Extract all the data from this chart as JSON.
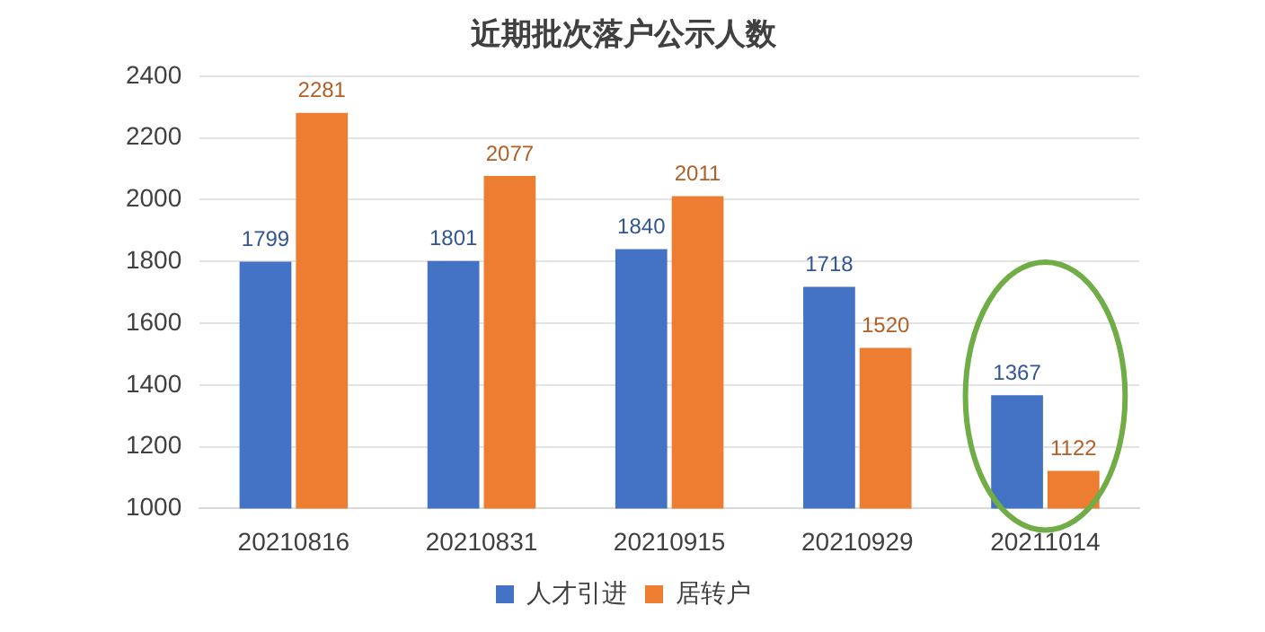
{
  "chart_data": {
    "type": "bar",
    "title": "近期批次落户公示人数",
    "categories": [
      "20210816",
      "20210831",
      "20210915",
      "20210929",
      "20211014"
    ],
    "series": [
      {
        "name": "人才引进",
        "color": "#4472c4",
        "values": [
          1799,
          1801,
          1840,
          1718,
          1367
        ]
      },
      {
        "name": "居转户",
        "color": "#ed7d31",
        "values": [
          2281,
          2077,
          2011,
          1520,
          1122
        ]
      }
    ],
    "ylim": [
      1000,
      2400
    ],
    "yticks": [
      1000,
      1200,
      1400,
      1600,
      1800,
      2000,
      2200,
      2400
    ],
    "grid": "y",
    "legend": "bottom",
    "data_labels": true
  }
}
